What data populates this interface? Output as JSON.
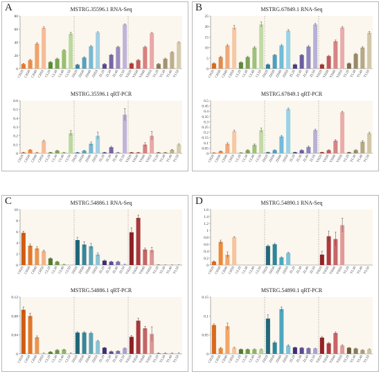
{
  "panels": [
    {
      "letter": "A"
    },
    {
      "letter": "B"
    },
    {
      "letter": "C"
    },
    {
      "letter": "D"
    }
  ],
  "chart_data": [
    {
      "panel": "A",
      "type": "bar",
      "title": "MSTRG.35596.1   RNA-Seq",
      "ylim": [
        0,
        80
      ],
      "yticks": [
        0,
        20,
        40,
        60,
        80
      ],
      "categories": [
        "CH20",
        "CH30",
        "CH40",
        "CH50",
        "CL20",
        "CL30",
        "CL40",
        "CL50",
        "ZH20",
        "ZH30",
        "ZH40",
        "ZH50",
        "ZL20",
        "ZL30",
        "ZL40",
        "ZL50",
        "YH20",
        "YH30",
        "YH40",
        "YH50",
        "YL20",
        "YL30",
        "YL40",
        "YL50"
      ],
      "values": [
        7,
        13,
        38,
        62,
        10,
        15,
        28,
        53,
        6,
        17,
        34,
        55,
        7,
        21,
        33,
        67,
        8,
        13,
        33,
        54,
        7,
        15,
        25,
        40
      ],
      "errors": [
        1,
        1,
        1.5,
        1.5,
        1,
        1,
        1,
        2,
        1,
        1,
        1,
        1,
        1,
        1,
        1,
        1,
        1,
        1,
        1,
        1,
        1,
        1,
        1,
        1
      ],
      "colors": [
        "#e8782c",
        "#ec8c4a",
        "#f0a26c",
        "#f5bc98",
        "#5b8a35",
        "#78a550",
        "#99bf72",
        "#bcd79f",
        "#3a86a8",
        "#58a0bf",
        "#7ab8d2",
        "#a3d0e4",
        "#5a4690",
        "#7866a8",
        "#9a8cc0",
        "#bfb4d8",
        "#b03a3a",
        "#c55a5a",
        "#d98080",
        "#eaa8a8",
        "#8a7a55",
        "#a39370",
        "#bdaf8e",
        "#d6cbb0"
      ],
      "separators_after": [
        7,
        15
      ]
    },
    {
      "panel": "A",
      "type": "bar",
      "title": "MSTRG.35596.1   qRT-PCR",
      "ylim": [
        0,
        0.6
      ],
      "yticks": [
        0,
        0.1,
        0.2,
        0.3,
        0.4,
        0.5,
        0.6
      ],
      "categories": [
        "CH20",
        "CH30",
        "CH40",
        "CH50",
        "CL20",
        "CL30",
        "CL40",
        "CL50",
        "ZH20",
        "ZH30",
        "ZH40",
        "ZH50",
        "ZL20",
        "ZL30",
        "ZL40",
        "ZL50",
        "YH20",
        "YH30",
        "YH40",
        "YH50",
        "YL20",
        "YL30",
        "YL40",
        "YL50"
      ],
      "values": [
        0.01,
        0.04,
        0.01,
        0.14,
        0.01,
        0.03,
        0.01,
        0.23,
        0.01,
        0.03,
        0.11,
        0.2,
        0.01,
        0.07,
        0.01,
        0.44,
        0.01,
        0.01,
        0.1,
        0.2,
        0.01,
        0.01,
        0.04,
        0.1
      ],
      "errors": [
        0.003,
        0.005,
        0.003,
        0.01,
        0.003,
        0.005,
        0.003,
        0.03,
        0.003,
        0.005,
        0.02,
        0.04,
        0.003,
        0.01,
        0.003,
        0.07,
        0.003,
        0.003,
        0.02,
        0.05,
        0.003,
        0.003,
        0.005,
        0.01
      ],
      "colors": [
        "#e8782c",
        "#ec8c4a",
        "#f0a26c",
        "#f5bc98",
        "#5b8a35",
        "#78a550",
        "#99bf72",
        "#bcd79f",
        "#3a86a8",
        "#58a0bf",
        "#7ab8d2",
        "#a3d0e4",
        "#5a4690",
        "#7866a8",
        "#9a8cc0",
        "#bfb4d8",
        "#b03a3a",
        "#c55a5a",
        "#d98080",
        "#eaa8a8",
        "#8a7a55",
        "#a39370",
        "#bdaf8e",
        "#d6cbb0"
      ],
      "separators_after": [
        7,
        15
      ]
    },
    {
      "panel": "B",
      "type": "bar",
      "title": "MSTRG.67849.1   RNA-Seq",
      "ylim": [
        0,
        25
      ],
      "yticks": [
        0,
        5,
        10,
        15,
        20,
        25
      ],
      "categories": [
        "CH20",
        "CH30",
        "CH40",
        "CH50",
        "CL20",
        "CL30",
        "CL40",
        "CL50",
        "ZH20",
        "ZH30",
        "ZH40",
        "ZH50",
        "ZL20",
        "ZL30",
        "ZL40",
        "ZL50",
        "YH20",
        "YH30",
        "YH40",
        "YH50",
        "YL20",
        "YL30",
        "YL40",
        "YL50"
      ],
      "values": [
        2.5,
        5.5,
        11,
        19.5,
        3,
        5.5,
        10,
        21,
        2,
        6.5,
        11,
        18,
        2,
        6.5,
        10.5,
        21,
        2,
        6,
        13,
        19.5,
        2.5,
        7,
        10,
        17
      ],
      "errors": [
        0.3,
        0.4,
        0.5,
        1,
        0.3,
        0.4,
        0.5,
        1.2,
        0.3,
        0.3,
        0.5,
        0.5,
        0.3,
        0.3,
        0.5,
        0.5,
        0.3,
        0.3,
        0.6,
        0.5,
        0.3,
        0.3,
        0.5,
        0.6
      ],
      "colors": [
        "#d66a20",
        "#e38a4e",
        "#eeaa7a",
        "#f5c9a6",
        "#5e8a3a",
        "#7ea35a",
        "#a0c07e",
        "#c2daa6",
        "#2f7fa0",
        "#4f9ebf",
        "#72bcd8",
        "#9bd2e6",
        "#4a3d84",
        "#6a5da3",
        "#8f86bf",
        "#b7b0d8",
        "#a83232",
        "#c05a5a",
        "#d68484",
        "#e8adab",
        "#7c6d4c",
        "#998a68",
        "#b6a888",
        "#d3c7aa"
      ],
      "separators_after": [
        7,
        15
      ]
    },
    {
      "panel": "B",
      "type": "bar",
      "title": "MSTRG.67849.1   qRT-PCR",
      "ylim": [
        0,
        0.5
      ],
      "yticks": [
        0,
        0.05,
        0.1,
        0.15,
        0.2,
        0.25,
        0.3,
        0.35,
        0.4,
        0.45,
        0.5
      ],
      "categories": [
        "CH20",
        "CH30",
        "CH40",
        "CH50",
        "CL20",
        "CL30",
        "CL40",
        "CL50",
        "ZH20",
        "ZH30",
        "ZH40",
        "ZH50",
        "ZL20",
        "ZL30",
        "ZL40",
        "ZL50",
        "YH20",
        "YH30",
        "YH40",
        "YH50",
        "YL20",
        "YL30",
        "YL40",
        "YL50"
      ],
      "values": [
        0.005,
        0.02,
        0.09,
        0.21,
        0.005,
        0.03,
        0.08,
        0.22,
        0.01,
        0.03,
        0.16,
        0.42,
        0.01,
        0.03,
        0.06,
        0.22,
        0.01,
        0.03,
        0.12,
        0.39,
        0.01,
        0.03,
        0.11,
        0.19
      ],
      "errors": [
        0.002,
        0.004,
        0.01,
        0.01,
        0.002,
        0.004,
        0.01,
        0.02,
        0.002,
        0.004,
        0.01,
        0.01,
        0.002,
        0.004,
        0.01,
        0.01,
        0.002,
        0.004,
        0.01,
        0.01,
        0.002,
        0.004,
        0.01,
        0.01
      ],
      "colors": [
        "#d66a20",
        "#e38a4e",
        "#eeaa7a",
        "#f5c9a6",
        "#5e8a3a",
        "#7ea35a",
        "#a0c07e",
        "#c2daa6",
        "#2f7fa0",
        "#4f9ebf",
        "#72bcd8",
        "#9bd2e6",
        "#4a3d84",
        "#6a5da3",
        "#8f86bf",
        "#b7b0d8",
        "#a83232",
        "#c05a5a",
        "#d68484",
        "#e8adab",
        "#7c6d4c",
        "#998a68",
        "#b6a888",
        "#d3c7aa"
      ],
      "separators_after": [
        7,
        15
      ]
    },
    {
      "panel": "C",
      "type": "bar",
      "title": "MSTRG.54886.1   RNA-Seq",
      "ylim": [
        0,
        10
      ],
      "yticks": [
        0,
        2,
        4,
        6,
        8,
        10
      ],
      "categories": [
        "CH20",
        "CH30",
        "CH40",
        "CH50",
        "CL20",
        "CL30",
        "CL40",
        "CL50",
        "ZH20",
        "ZH30",
        "ZH40",
        "ZH50",
        "ZL20",
        "ZL30",
        "ZL40",
        "ZL50",
        "YH20",
        "YH30",
        "YH40",
        "YH50",
        "YL20",
        "YL30",
        "YL40",
        "YL50"
      ],
      "values": [
        5.8,
        3.5,
        3.0,
        2.5,
        1.2,
        0.6,
        0.1,
        0,
        4.5,
        3.7,
        3.4,
        1.9,
        0.8,
        0.6,
        0.6,
        0.1,
        5.9,
        8.5,
        2.8,
        2.7,
        0.05,
        0.02,
        0.02,
        0.02
      ],
      "errors": [
        0.3,
        0.3,
        0.3,
        0.2,
        0.1,
        0.1,
        0.05,
        0,
        0.5,
        0.5,
        0.5,
        0.3,
        0.1,
        0.1,
        0.1,
        0.05,
        0.8,
        0.5,
        0.3,
        0.5,
        0.02,
        0.02,
        0.02,
        0.02
      ],
      "colors": [
        "#cf5c13",
        "#e2782d",
        "#eb9552",
        "#f2b487",
        "#4f7a2c",
        "#6b9545",
        "#8fb266",
        "#b4cf95",
        "#1f6678",
        "#3a8599",
        "#5fa3b5",
        "#8cc4d4",
        "#3d2e75",
        "#594a92",
        "#7e73b0",
        "#a9a2cf",
        "#8e1f24",
        "#a8393d",
        "#c46567",
        "#dc9694",
        "#6b5a3a",
        "#8a7a57",
        "#ab9d7b",
        "#cdc2a2"
      ],
      "separators_after": [
        7,
        15
      ]
    },
    {
      "panel": "C",
      "type": "bar",
      "title": "MSTRG.54886.1   qRT-PCR",
      "ylim": [
        0,
        0.12
      ],
      "yticks": [
        0,
        0.04,
        0.08,
        0.12
      ],
      "categories": [
        "CH20",
        "CH30",
        "CH40",
        "CH50",
        "CL20",
        "CL30",
        "CL40",
        "CL50",
        "ZH20",
        "ZH30",
        "ZH40",
        "ZH50",
        "ZL20",
        "ZL30",
        "ZL40",
        "ZL50",
        "YH20",
        "YH30",
        "YH40",
        "YH50",
        "YL20",
        "YL30",
        "YL40",
        "YL50"
      ],
      "values": [
        0.093,
        0.08,
        0.035,
        0.001,
        0.004,
        0.008,
        0.009,
        0.001,
        0.045,
        0.045,
        0.044,
        0.027,
        0.013,
        0.005,
        0.006,
        0.012,
        0.036,
        0.07,
        0.054,
        0.042,
        0.001,
        0.001,
        0.001,
        0.001
      ],
      "errors": [
        0.006,
        0.006,
        0.003,
        0.001,
        0.001,
        0.001,
        0.001,
        0.001,
        0.002,
        0.002,
        0.002,
        0.002,
        0.001,
        0.001,
        0.001,
        0.001,
        0.003,
        0.005,
        0.004,
        0.015,
        0.001,
        0.001,
        0.001,
        0.001
      ],
      "colors": [
        "#cf5c13",
        "#e2782d",
        "#eb9552",
        "#f2b487",
        "#4f7a2c",
        "#6b9545",
        "#8fb266",
        "#b4cf95",
        "#1f6678",
        "#3a8599",
        "#5fa3b5",
        "#8cc4d4",
        "#3d2e75",
        "#594a92",
        "#7e73b0",
        "#a9a2cf",
        "#8e1f24",
        "#a8393d",
        "#c46567",
        "#dc9694",
        "#6b5a3a",
        "#8a7a57",
        "#ab9d7b",
        "#cdc2a2"
      ],
      "separators_after": [
        7,
        15
      ]
    },
    {
      "panel": "D",
      "type": "bar",
      "title": "MSTRG.54890.1   RNA-Seq",
      "ylim": [
        0,
        1.6
      ],
      "yticks": [
        0,
        0.2,
        0.4,
        0.6,
        0.8,
        1,
        1.2,
        1.4,
        1.6
      ],
      "categories": [
        "CH20",
        "CH30",
        "CH40",
        "CH50",
        "CL20",
        "CL30",
        "CL40",
        "CL50",
        "ZH20",
        "ZH30",
        "ZH40",
        "ZH50",
        "ZL20",
        "ZL30",
        "ZL40",
        "ZL50",
        "YH20",
        "YH30",
        "YH40",
        "YH50",
        "YL20",
        "YL30",
        "YL40",
        "YL50"
      ],
      "values": [
        0.1,
        0.67,
        0.3,
        0.8,
        0,
        0,
        0,
        0,
        0.55,
        0.6,
        0.22,
        0.35,
        0,
        0,
        0,
        0,
        0.3,
        0.83,
        0.75,
        1.15,
        0,
        0,
        0,
        0
      ],
      "errors": [
        0.02,
        0.05,
        0.08,
        0.02,
        0,
        0,
        0,
        0,
        0.03,
        0.03,
        0.02,
        0.02,
        0,
        0,
        0,
        0,
        0.1,
        0.15,
        0.2,
        0.2,
        0,
        0,
        0,
        0
      ],
      "colors": [
        "#d96a1c",
        "#ed8a3a",
        "#f2a66a",
        "#f6c49e",
        "#4f7a2c",
        "#6b9545",
        "#8fb266",
        "#b4cf95",
        "#226878",
        "#2f8599",
        "#4fa6bf",
        "#7ec2d8",
        "#3d2e75",
        "#594a92",
        "#7e73b0",
        "#a9a2cf",
        "#922226",
        "#b0393e",
        "#c86469",
        "#e29a99",
        "#6b5a3a",
        "#8a7a57",
        "#ab9d7b",
        "#cdc2a2"
      ],
      "separators_after": [
        7,
        15
      ]
    },
    {
      "panel": "D",
      "type": "bar",
      "title": "MSTRG.54890.1   qRT-PCR",
      "ylim": [
        0,
        0.15
      ],
      "yticks": [
        0,
        0.05,
        0.1,
        0.15
      ],
      "categories": [
        "CH20",
        "CH30",
        "CH40",
        "CH50",
        "CL20",
        "CL30",
        "CL40",
        "CL50",
        "ZH20",
        "ZH30",
        "ZH40",
        "ZH50",
        "ZL20",
        "ZL30",
        "ZL40",
        "ZL50",
        "YH20",
        "YH30",
        "YH40",
        "YH50",
        "YL20",
        "YL30",
        "YL40",
        "YL50"
      ],
      "values": [
        0.076,
        0.015,
        0.073,
        0.016,
        0.012,
        0.012,
        0.012,
        0.012,
        0.093,
        0.03,
        0.118,
        0.022,
        0.017,
        0.016,
        0.015,
        0.014,
        0.043,
        0.028,
        0.055,
        0.022,
        0.016,
        0.014,
        0.01,
        0.012
      ],
      "errors": [
        0.003,
        0.002,
        0.008,
        0.002,
        0.001,
        0.001,
        0.001,
        0.001,
        0.01,
        0.003,
        0.006,
        0.002,
        0.001,
        0.001,
        0.001,
        0.001,
        0.003,
        0.002,
        0.003,
        0.002,
        0.001,
        0.001,
        0.001,
        0.001
      ],
      "colors": [
        "#d96a1c",
        "#ed8a3a",
        "#f2a66a",
        "#f6c49e",
        "#4f7a2c",
        "#6b9545",
        "#8fb266",
        "#b4cf95",
        "#226878",
        "#2f8599",
        "#4fa6bf",
        "#7ec2d8",
        "#3d2e75",
        "#594a92",
        "#7e73b0",
        "#a9a2cf",
        "#922226",
        "#b0393e",
        "#c86469",
        "#e29a99",
        "#6b5a3a",
        "#8a7a57",
        "#ab9d7b",
        "#cdc2a2"
      ],
      "separators_after": [
        7,
        15
      ]
    }
  ]
}
